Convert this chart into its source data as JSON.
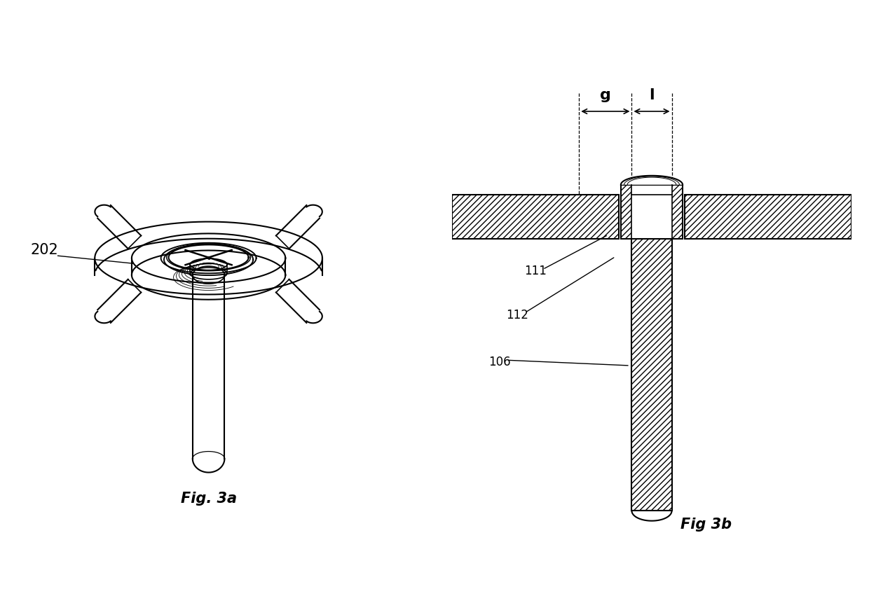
{
  "fig_title_a": "Fig. 3a",
  "fig_title_b": "Fig 3b",
  "label_202": "202",
  "label_111": "111",
  "label_112": "112",
  "label_106": "106",
  "label_g": "g",
  "label_l": "l",
  "bg_color": "#ffffff",
  "line_color": "#000000",
  "title_fontsize": 15,
  "label_fontsize": 12
}
